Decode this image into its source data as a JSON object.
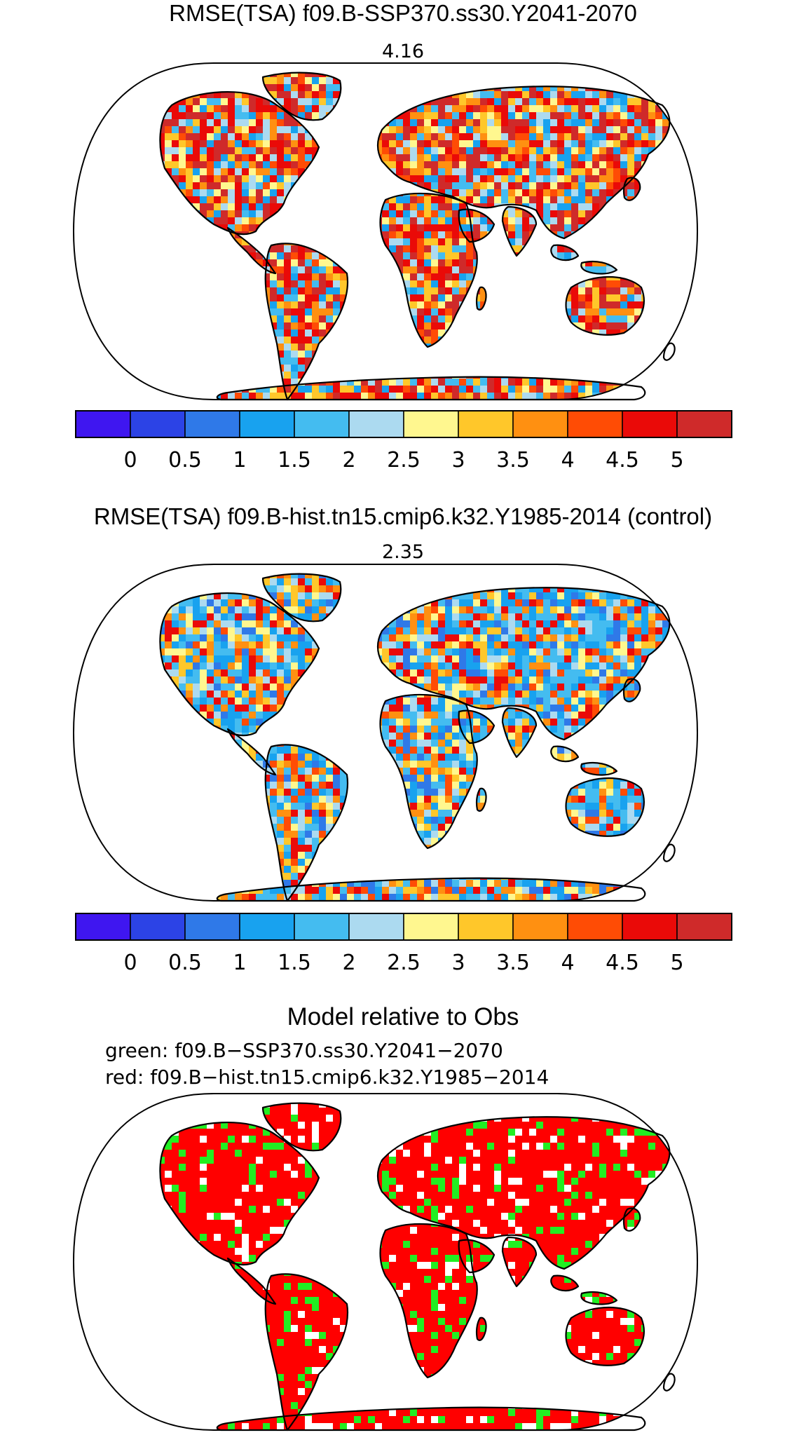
{
  "panels": [
    {
      "title": "RMSE(TSA) f09.B-SSP370.ss30.Y2041-2070",
      "value_label": "4.16",
      "scheme": "warm"
    },
    {
      "title": "RMSE(TSA) f09.B-hist.tn15.cmip6.k32.Y1985-2014 (control)",
      "value_label": "2.35",
      "scheme": "cool"
    }
  ],
  "colorbar": {
    "colors": [
      "#3f16f0",
      "#2c43e6",
      "#2f79e8",
      "#18a2ef",
      "#44bcf0",
      "#acdaf0",
      "#fff78f",
      "#ffc72a",
      "#ff9011",
      "#ff4c05",
      "#ea0a08",
      "#cf2a2a"
    ],
    "tick_labels": [
      "0",
      "0.5",
      "1",
      "1.5",
      "2",
      "2.5",
      "3",
      "3.5",
      "4",
      "4.5",
      "5"
    ]
  },
  "comparison": {
    "title": "Model relative to Obs",
    "legend_green": "green: f09.B−SSP370.ss30.Y2041−2070",
    "legend_red": "red: f09.B−hist.tn15.cmip6.k32.Y1985−2014",
    "colors": {
      "better": "#ff0000",
      "worse": "#22ee22",
      "missing": "#ffffff"
    }
  }
}
